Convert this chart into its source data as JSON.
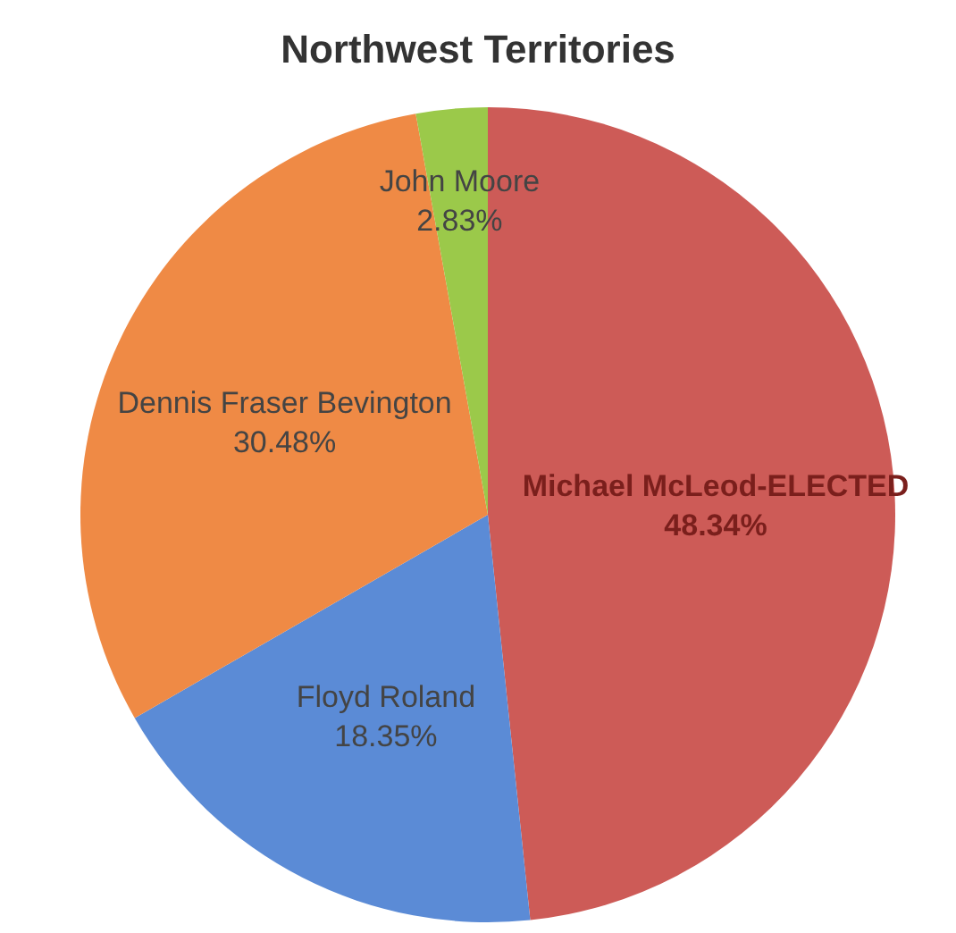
{
  "chart_data": {
    "type": "pie",
    "title": "Northwest Territories",
    "categories": [
      "Michael McLeod-ELECTED",
      "Floyd Roland",
      "Dennis Fraser Bevington",
      "John Moore"
    ],
    "values": [
      48.34,
      18.35,
      30.48,
      2.83
    ],
    "colors": [
      "#cd5b57",
      "#5b8bd6",
      "#ef8a45",
      "#9bc94a"
    ],
    "value_labels": [
      "48.34%",
      "18.35%",
      "30.48%",
      "2.83%"
    ],
    "legend": false
  }
}
